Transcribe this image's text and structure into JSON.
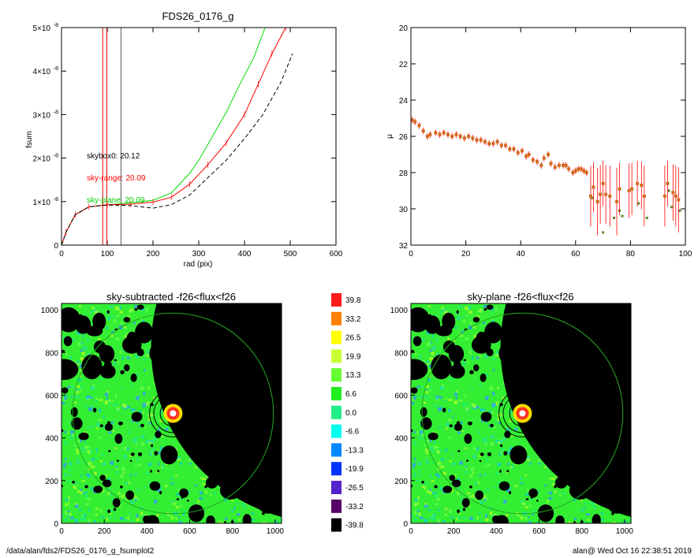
{
  "footer": {
    "path": "/data/alan/fds2/FDS26_0176_g_fsumplot2",
    "stamp": "alan@  Wed Oct 16 22:38:51 2019"
  },
  "chart_data": [
    {
      "type": "line",
      "title": "FDS26_0176_g",
      "xlabel": "rad (pix)",
      "ylabel": "fsum",
      "xlim": [
        0,
        600
      ],
      "ylim": [
        0,
        5e-08
      ],
      "xticks": [
        "0",
        "100",
        "200",
        "300",
        "400",
        "500",
        "600"
      ],
      "ytick_values": [
        0,
        1e-08,
        2e-08,
        3e-08,
        4e-08,
        5e-08
      ],
      "ytick_mantissas": [
        "0",
        "1×10",
        "2×10",
        "3×10",
        "4×10",
        "5×10"
      ],
      "ytick_exponent": "-8",
      "vlines": [
        {
          "x": 90,
          "color": "#ff0000"
        },
        {
          "x": 99,
          "color": "#ff0000"
        },
        {
          "x": 130,
          "color": "#555555"
        }
      ],
      "annotations": [
        {
          "text": "skybox0: 20.12",
          "color": "#000000"
        },
        {
          "text": "sky-range: 20.09",
          "color": "#ff0000"
        },
        {
          "text": "sky-plane: 20.09",
          "color": "#00cc00"
        }
      ],
      "series": [
        {
          "color": "#00dd00",
          "style": "solid",
          "points": [
            [
              0,
              0
            ],
            [
              10,
              3e-09
            ],
            [
              30,
              7e-09
            ],
            [
              60,
              8.8e-09
            ],
            [
              100,
              9.3e-09
            ],
            [
              150,
              9.7e-09
            ],
            [
              200,
              1.03e-08
            ],
            [
              240,
              1.2e-08
            ],
            [
              280,
              1.65e-08
            ],
            [
              300,
              1.95e-08
            ],
            [
              330,
              2.5e-08
            ],
            [
              360,
              3.05e-08
            ],
            [
              390,
              3.7e-08
            ],
            [
              420,
              4.3e-08
            ],
            [
              445,
              5e-08
            ]
          ]
        },
        {
          "color": "#ff0000",
          "style": "solid",
          "points": [
            [
              0,
              0
            ],
            [
              10,
              3e-09
            ],
            [
              30,
              7e-09
            ],
            [
              60,
              8.8e-09
            ],
            [
              100,
              9.3e-09
            ],
            [
              150,
              9.4e-09
            ],
            [
              200,
              9.9e-09
            ],
            [
              240,
              1.1e-08
            ],
            [
              280,
              1.4e-08
            ],
            [
              320,
              1.85e-08
            ],
            [
              360,
              2.35e-08
            ],
            [
              400,
              3e-08
            ],
            [
              430,
              3.7e-08
            ],
            [
              460,
              4.4e-08
            ],
            [
              490,
              5e-08
            ]
          ]
        },
        {
          "color": "#000000",
          "style": "dashed",
          "points": [
            [
              0,
              0
            ],
            [
              10,
              3e-09
            ],
            [
              30,
              7e-09
            ],
            [
              60,
              8.8e-09
            ],
            [
              100,
              9.2e-09
            ],
            [
              150,
              9.1e-09
            ],
            [
              200,
              8.5e-09
            ],
            [
              240,
              9.3e-09
            ],
            [
              280,
              1.15e-08
            ],
            [
              320,
              1.55e-08
            ],
            [
              360,
              1.95e-08
            ],
            [
              400,
              2.45e-08
            ],
            [
              440,
              3e-08
            ],
            [
              480,
              3.75e-08
            ],
            [
              505,
              4.4e-08
            ]
          ]
        }
      ]
    },
    {
      "type": "scatter",
      "title": "",
      "xlabel": "",
      "ylabel": "μ",
      "xlim": [
        0,
        100
      ],
      "ylim": [
        32,
        20
      ],
      "xticks": [
        "0",
        "20",
        "40",
        "60",
        "80",
        "100"
      ],
      "yticks": [
        "20",
        "22",
        "24",
        "26",
        "28",
        "30",
        "32"
      ],
      "points": [
        [
          0.5,
          25.1
        ],
        [
          1.5,
          25.2
        ],
        [
          3,
          25.4
        ],
        [
          4.5,
          25.7
        ],
        [
          6,
          26.0
        ],
        [
          7,
          25.9
        ],
        [
          9,
          25.8
        ],
        [
          10.5,
          25.9
        ],
        [
          12,
          25.8
        ],
        [
          13.5,
          25.9
        ],
        [
          15,
          26.0
        ],
        [
          16.5,
          25.9
        ],
        [
          18,
          26.0
        ],
        [
          19.5,
          26.1
        ],
        [
          21,
          26.0
        ],
        [
          22.5,
          26.1
        ],
        [
          24,
          26.2
        ],
        [
          25.5,
          26.2
        ],
        [
          27,
          26.3
        ],
        [
          28.5,
          26.4
        ],
        [
          30,
          26.4
        ],
        [
          31.5,
          26.3
        ],
        [
          33,
          26.5
        ],
        [
          34.5,
          26.5
        ],
        [
          36,
          26.7
        ],
        [
          37.5,
          26.7
        ],
        [
          39,
          26.9
        ],
        [
          40.5,
          26.8
        ],
        [
          42,
          27.1
        ],
        [
          43,
          27.0
        ],
        [
          44.5,
          27.3
        ],
        [
          46,
          27.4
        ],
        [
          47.5,
          27.6
        ],
        [
          48.5,
          27.2
        ],
        [
          50,
          27.0
        ],
        [
          51,
          27.5
        ],
        [
          52.5,
          27.7
        ],
        [
          54,
          27.6
        ],
        [
          55.5,
          27.6
        ],
        [
          56.5,
          27.6
        ],
        [
          57.5,
          27.8
        ],
        [
          59,
          28.0
        ],
        [
          60,
          27.9
        ],
        [
          61,
          27.8
        ],
        [
          62,
          27.8
        ],
        [
          63,
          27.9
        ],
        [
          64,
          28.0
        ],
        [
          65.5,
          29.3
        ],
        [
          66.5,
          28.8
        ],
        [
          68,
          29.6
        ],
        [
          69,
          29.2
        ],
        [
          70,
          28.6
        ],
        [
          71,
          29.2
        ],
        [
          72.5,
          29.3
        ],
        [
          75,
          29.6
        ],
        [
          76,
          28.9
        ],
        [
          79.5,
          29.0
        ],
        [
          80.5,
          28.9
        ],
        [
          82.5,
          28.6
        ],
        [
          84,
          28.7
        ],
        [
          85,
          29.3
        ],
        [
          92.5,
          29.3
        ],
        [
          93.5,
          28.6
        ],
        [
          95.5,
          29.1
        ],
        [
          96.5,
          29.3
        ],
        [
          97.5,
          29.5
        ]
      ],
      "extra_markers": [
        [
          66,
          29.4
        ],
        [
          70,
          31.3
        ],
        [
          74,
          30.5
        ],
        [
          76,
          30.1
        ],
        [
          77,
          30.4
        ],
        [
          83,
          29.7
        ],
        [
          86,
          30.5
        ],
        [
          94,
          29.0
        ],
        [
          95,
          29.9
        ],
        [
          98,
          30.1
        ]
      ],
      "marker_color": "#d2691e",
      "errorbar_color": "#ff0000",
      "extra_marker_color": "#558822"
    },
    {
      "type": "heatmap",
      "title": "sky-subtracted -f26<flux<f26",
      "xlim": [
        0,
        1030
      ],
      "ylim": [
        0,
        1030
      ],
      "xticks": [
        "0",
        "200",
        "400",
        "600",
        "800",
        "1000"
      ],
      "yticks": [
        "0",
        "200",
        "400",
        "600",
        "800",
        "1000"
      ],
      "masked_region": "upper-right quarter disc centred near (1030, 400)",
      "target_center": [
        522,
        515
      ],
      "aperture_radii": [
        60,
        90,
        110,
        470
      ]
    },
    {
      "type": "heatmap",
      "title": "sky-plane -f26<flux<f26",
      "xlim": [
        0,
        1030
      ],
      "ylim": [
        0,
        1030
      ],
      "xticks": [
        "0",
        "200",
        "400",
        "600",
        "800",
        "1000"
      ],
      "yticks": [
        "0",
        "200",
        "400",
        "600",
        "800",
        "1000"
      ],
      "masked_region": "upper-right quarter disc centred near (1030, 400)",
      "target_center": [
        522,
        515
      ],
      "aperture_radii": [
        60,
        90,
        110,
        470
      ]
    }
  ],
  "colorbar": {
    "labels": [
      "39.8",
      "33.2",
      "26.5",
      "19.9",
      "13.3",
      "6.6",
      "0.0",
      "-6.6",
      "-13.3",
      "-19.9",
      "-26.5",
      "-33.2",
      "-39.8"
    ],
    "colors": [
      "#ff1a1a",
      "#ff8000",
      "#ffff00",
      "#c8ff33",
      "#66ff33",
      "#22ee22",
      "#22ee88",
      "#00ffee",
      "#0088ff",
      "#0033ff",
      "#5522cc",
      "#550066",
      "#000000"
    ]
  }
}
